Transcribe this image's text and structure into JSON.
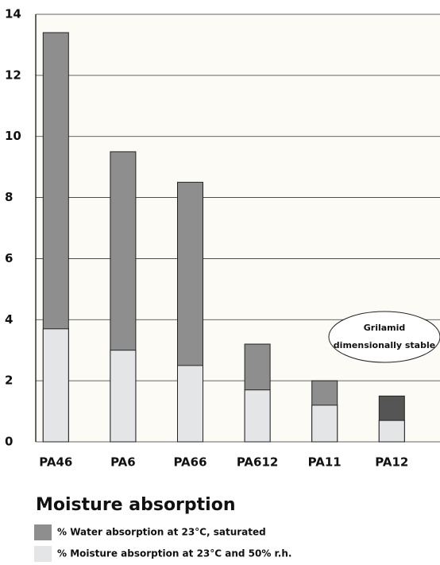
{
  "chart_data": {
    "type": "bar",
    "title": "Moisture absorption",
    "categories": [
      "PA46",
      "PA6",
      "PA66",
      "PA612",
      "PA11",
      "PA12"
    ],
    "series": [
      {
        "name": "% Water absorption at 23°C, saturated",
        "color": "#8e8e8e",
        "colors": [
          "#8e8e8e",
          "#8e8e8e",
          "#8e8e8e",
          "#8e8e8e",
          "#8e8e8e",
          "#555555"
        ],
        "values": [
          13.4,
          9.5,
          8.5,
          3.2,
          2.0,
          1.5
        ]
      },
      {
        "name": "% Moisture absorption at 23°C and 50% r.h.",
        "color": "#e4e5e7",
        "values": [
          3.7,
          3.0,
          2.5,
          1.7,
          1.2,
          0.7
        ]
      }
    ],
    "annotation": [
      "Grilamid",
      "dimensionally stable"
    ],
    "ylim": [
      0,
      14
    ],
    "yticks": [
      0,
      2,
      4,
      6,
      8,
      10,
      12,
      14
    ],
    "grid": true
  }
}
